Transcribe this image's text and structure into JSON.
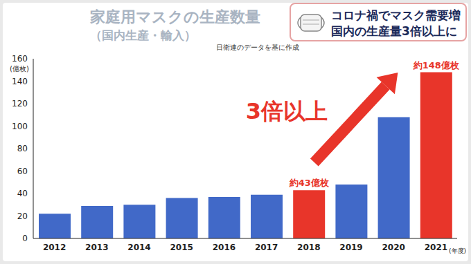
{
  "chart_data": {
    "type": "bar",
    "title": "家庭用マスクの生産数量",
    "subtitle": "（国内生産・輸入）",
    "source": "日衛連のデータを基に作成",
    "headline": [
      "コロナ禍でマスク需要増",
      "国内の生産量3倍以上に"
    ],
    "y_label": "(億枚)",
    "x_label": "(年度)",
    "categories": [
      "2012",
      "2013",
      "2014",
      "2015",
      "2016",
      "2017",
      "2018",
      "2019",
      "2020",
      "2021"
    ],
    "values": [
      22,
      29,
      30,
      36,
      37,
      39,
      43,
      48,
      108,
      148
    ],
    "colors": [
      "#4169c8",
      "#4169c8",
      "#4169c8",
      "#4169c8",
      "#4169c8",
      "#4169c8",
      "#e8352a",
      "#4169c8",
      "#4169c8",
      "#e8352a"
    ],
    "ylim": [
      0,
      160
    ],
    "yticks": [
      0,
      20,
      40,
      60,
      80,
      100,
      120,
      140,
      160
    ],
    "grid": false,
    "annotations": [
      {
        "text": "約43億枚",
        "category": "2018"
      },
      {
        "text": "約148億枚",
        "category": "2021"
      },
      {
        "text": "3倍以上",
        "from": "2018",
        "to": "2021"
      }
    ]
  }
}
